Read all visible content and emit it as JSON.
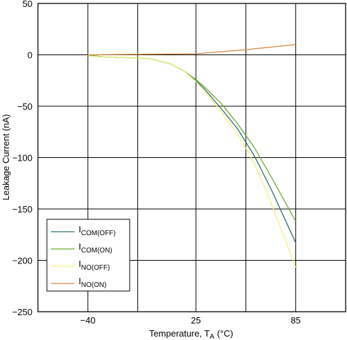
{
  "chart_data": {
    "type": "line",
    "xlabel": "Temperature, T",
    "xlabel_sub": "A",
    "xlabel_unit": "(°C)",
    "ylabel": "Leakage Current (nA)",
    "xlim": [
      -70,
      115
    ],
    "ylim": [
      -250,
      50
    ],
    "x_ticks": [
      -40,
      25,
      85
    ],
    "x_tick_labels": [
      "−40",
      "25",
      "85"
    ],
    "x_gridlines": [
      -70,
      -40,
      -10,
      25,
      55,
      85,
      115
    ],
    "y_ticks": [
      50,
      0,
      -50,
      -100,
      -150,
      -200,
      -250
    ],
    "y_tick_labels": [
      "50",
      "0",
      "−50",
      "−100",
      "−150",
      "−200",
      "−250"
    ],
    "grid": true,
    "legend_position": "bottom-left",
    "series": [
      {
        "name": "I",
        "name_sub": "COM(OFF)",
        "color": "#2e6e6e",
        "x": [
          -40,
          -30,
          -10,
          -2,
          10,
          18,
          25,
          30,
          40,
          50,
          60,
          70,
          85
        ],
        "y": [
          -1,
          -2,
          -3,
          -4,
          -9,
          -16,
          -25,
          -33,
          -52,
          -72,
          -98,
          -130,
          -183
        ]
      },
      {
        "name": "I",
        "name_sub": "COM(ON)",
        "color": "#6aa832",
        "x": [
          -40,
          -30,
          -10,
          -2,
          10,
          18,
          25,
          30,
          40,
          50,
          60,
          70,
          85
        ],
        "y": [
          0,
          -2,
          -3,
          -4,
          -9,
          -16,
          -24,
          -31,
          -47,
          -67,
          -90,
          -118,
          -162
        ]
      },
      {
        "name": "I",
        "name_sub": "NO(OFF)",
        "color": "#f2f07a",
        "x": [
          -40,
          -30,
          -10,
          -2,
          10,
          18,
          25,
          30,
          40,
          50,
          60,
          70,
          85
        ],
        "y": [
          -1,
          -2,
          -3,
          -4,
          -9,
          -16,
          -26,
          -35,
          -55,
          -77,
          -105,
          -143,
          -207
        ]
      },
      {
        "name": "I",
        "name_sub": "NO(ON)",
        "color": "#d4863a",
        "x": [
          -40,
          -10,
          25,
          55,
          85
        ],
        "y": [
          0,
          0.5,
          1,
          5,
          10
        ]
      }
    ]
  }
}
